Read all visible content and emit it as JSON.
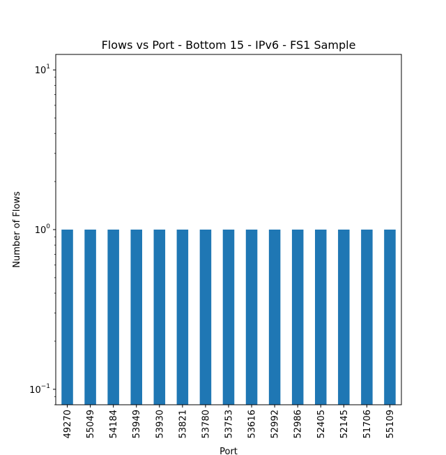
{
  "chart_data": {
    "type": "bar",
    "title": "Flows vs Port - Bottom 15 - IPv6 - FS1 Sample",
    "xlabel": "Port",
    "ylabel": "Number of Flows",
    "yscale": "log",
    "ylim": [
      0.08,
      12.5
    ],
    "yticks": [
      {
        "value": 0.1,
        "base": "10",
        "exp": "−1"
      },
      {
        "value": 1,
        "base": "10",
        "exp": "0"
      },
      {
        "value": 10,
        "base": "10",
        "exp": "1"
      }
    ],
    "categories": [
      "49270",
      "55049",
      "54184",
      "53949",
      "53930",
      "53821",
      "53780",
      "53753",
      "53616",
      "52992",
      "52986",
      "52405",
      "52145",
      "51706",
      "55109"
    ],
    "values": [
      1,
      1,
      1,
      1,
      1,
      1,
      1,
      1,
      1,
      1,
      1,
      1,
      1,
      1,
      1
    ],
    "bar_color": "#1f77b4",
    "grid": false,
    "legend": "none"
  }
}
